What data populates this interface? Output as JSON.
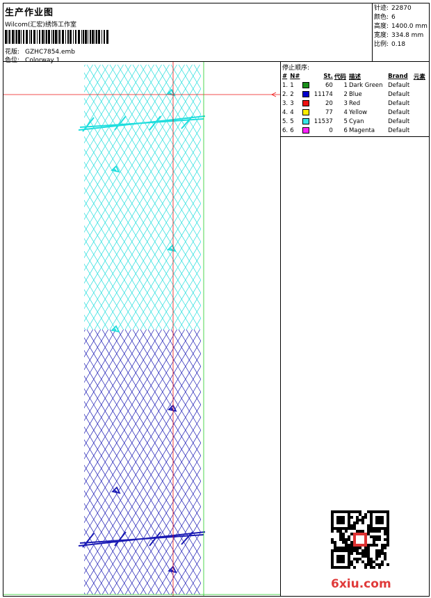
{
  "header": {
    "title": "生产作业图",
    "studio": "Wilcom(汇宏)绣饰工作室",
    "design_label": "花版:",
    "design_value": "GZHC7854.emb",
    "colorway_label": "色位:",
    "colorway_value": "Colorway 1"
  },
  "stats": {
    "stitches_label": "针迹:",
    "stitches_value": "22870",
    "colors_label": "颜色:",
    "colors_value": "6",
    "height_label": "高度:",
    "height_value": "1400.0 mm",
    "width_label": "宽度:",
    "width_value": "334.8 mm",
    "scale_label": "比例:",
    "scale_value": "0.18"
  },
  "stop_sequence": {
    "title": "停止顺序:",
    "columns": [
      "#",
      "N#",
      "St.",
      "代码",
      "描述",
      "Brand",
      "元素"
    ],
    "rows": [
      {
        "idx": "1.",
        "n": "1",
        "st": "60",
        "code": "1",
        "desc": "Dark Green",
        "brand": "Default",
        "color": "#1a8f1a"
      },
      {
        "idx": "2.",
        "n": "2",
        "st": "11174",
        "code": "2",
        "desc": "Blue",
        "brand": "Default",
        "color": "#0000cc"
      },
      {
        "idx": "3.",
        "n": "3",
        "st": "20",
        "code": "3",
        "desc": "Red",
        "brand": "Default",
        "color": "#ee1111"
      },
      {
        "idx": "4.",
        "n": "4",
        "st": "77",
        "code": "4",
        "desc": "Yellow",
        "brand": "Default",
        "color": "#ffee00"
      },
      {
        "idx": "5.",
        "n": "5",
        "st": "11537",
        "code": "5",
        "desc": "Cyan",
        "brand": "Default",
        "color": "#33e6e6"
      },
      {
        "idx": "6.",
        "n": "6",
        "st": "0",
        "code": "6",
        "desc": "Magenta",
        "brand": "Default",
        "color": "#ff22ff"
      }
    ]
  },
  "design_colors": {
    "cyan": "#20dede",
    "blue": "#1a1ab4",
    "guide_red": "#ee1111",
    "guide_green": "#22cc22"
  },
  "watermark": "6xiu.com"
}
